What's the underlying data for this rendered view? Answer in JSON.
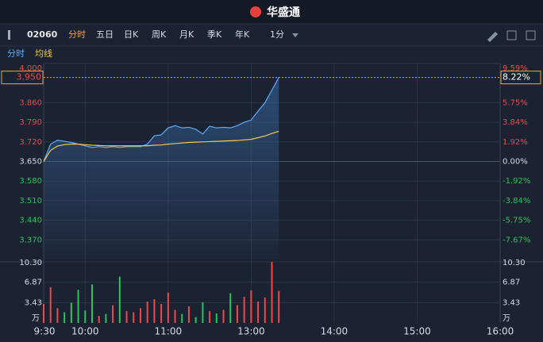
{
  "header": {
    "logo": "华盛通"
  },
  "toolbar": {
    "code": "02060",
    "tabs": [
      "分时",
      "五日",
      "日K",
      "周K",
      "月K",
      "季K",
      "年K"
    ],
    "active_tab": 0,
    "interval": "1分"
  },
  "chart_data": {
    "type": "line",
    "x": [
      "9:30",
      "9:35",
      "9:40",
      "9:45",
      "9:50",
      "9:55",
      "10:00",
      "10:05",
      "10:10",
      "10:15",
      "10:20",
      "10:25",
      "10:30",
      "10:35",
      "10:40",
      "10:45",
      "10:50",
      "10:55",
      "11:00",
      "11:05",
      "11:10",
      "11:15",
      "11:20",
      "11:25",
      "11:30",
      "11:35",
      "11:40",
      "11:45",
      "11:50",
      "11:55",
      "12:00",
      "13:05",
      "13:10",
      "13:15",
      "13:20"
    ],
    "xlim": [
      "9:30",
      "16:00"
    ],
    "xbreak": [
      "12:00",
      "13:00"
    ],
    "xticks": [
      "9:30",
      "10:00",
      "11:00",
      "13:00",
      "14:00",
      "15:00",
      "16:00"
    ],
    "ylim": [
      3.3,
      4.0
    ],
    "yticks": [
      {
        "value": 4.0,
        "label": "4.000"
      },
      {
        "value": 3.86,
        "label": "3.860"
      },
      {
        "value": 3.79,
        "label": "3.790"
      },
      {
        "value": 3.72,
        "label": "3.720"
      },
      {
        "value": 3.65,
        "label": "3.650"
      },
      {
        "value": 3.58,
        "label": "3.580"
      },
      {
        "value": 3.51,
        "label": "3.510"
      },
      {
        "value": 3.44,
        "label": "3.440"
      },
      {
        "value": 3.37,
        "label": "3.370"
      }
    ],
    "y2lim": [
      -9.59,
      9.59
    ],
    "y2ticks": [
      {
        "value": 9.59,
        "label": "9.59%"
      },
      {
        "value": 5.75,
        "label": "5.75%"
      },
      {
        "value": 3.84,
        "label": "3.84%"
      },
      {
        "value": 1.92,
        "label": "1.92%"
      },
      {
        "value": 0,
        "label": "0.00%"
      },
      {
        "value": -1.92,
        "label": "-1.92%"
      },
      {
        "value": -3.84,
        "label": "-3.84%"
      },
      {
        "value": -5.75,
        "label": "-5.75%"
      },
      {
        "value": -7.67,
        "label": "-7.67%"
      }
    ],
    "series": [
      {
        "name": "分时",
        "color": "#5aaefc",
        "values": [
          3.65,
          3.712,
          3.726,
          3.722,
          3.718,
          3.712,
          3.706,
          3.7,
          3.703,
          3.7,
          3.703,
          3.7,
          3.703,
          3.703,
          3.703,
          3.712,
          3.742,
          3.745,
          3.77,
          3.778,
          3.77,
          3.772,
          3.765,
          3.748,
          3.776,
          3.77,
          3.772,
          3.77,
          3.778,
          3.79,
          3.798,
          3.83,
          3.86,
          3.905,
          3.95
        ]
      },
      {
        "name": "均线",
        "color": "#f2c94c",
        "values": [
          3.65,
          3.69,
          3.705,
          3.71,
          3.712,
          3.712,
          3.71,
          3.708,
          3.707,
          3.706,
          3.706,
          3.706,
          3.706,
          3.706,
          3.706,
          3.706,
          3.708,
          3.709,
          3.712,
          3.714,
          3.716,
          3.718,
          3.719,
          3.72,
          3.721,
          3.722,
          3.723,
          3.724,
          3.725,
          3.727,
          3.729,
          3.735,
          3.741,
          3.75,
          3.758
        ]
      }
    ],
    "crosshair": {
      "value": 3.95,
      "label": "3.950",
      "pct": 8.22,
      "pct_label": "8.22%"
    },
    "volume": {
      "ylim": [
        0,
        10.3
      ],
      "yticks": [
        {
          "value": 10.3,
          "label": "10.30"
        },
        6.87,
        3.43
      ],
      "unit": "万",
      "up_color": "#f04848",
      "down_color": "#2fc25b",
      "values": [
        3.2,
        6.0,
        2.5,
        1.8,
        3.4,
        5.6,
        2.1,
        6.5,
        1.2,
        1.5,
        3.0,
        7.8,
        2.0,
        1.8,
        2.5,
        3.6,
        4.0,
        3.2,
        5.1,
        2.2,
        1.5,
        2.8,
        1.0,
        3.5,
        2.0,
        1.6,
        2.2,
        5.0,
        3.0,
        4.4,
        5.5,
        3.6,
        4.3,
        10.3,
        5.4
      ]
    }
  }
}
